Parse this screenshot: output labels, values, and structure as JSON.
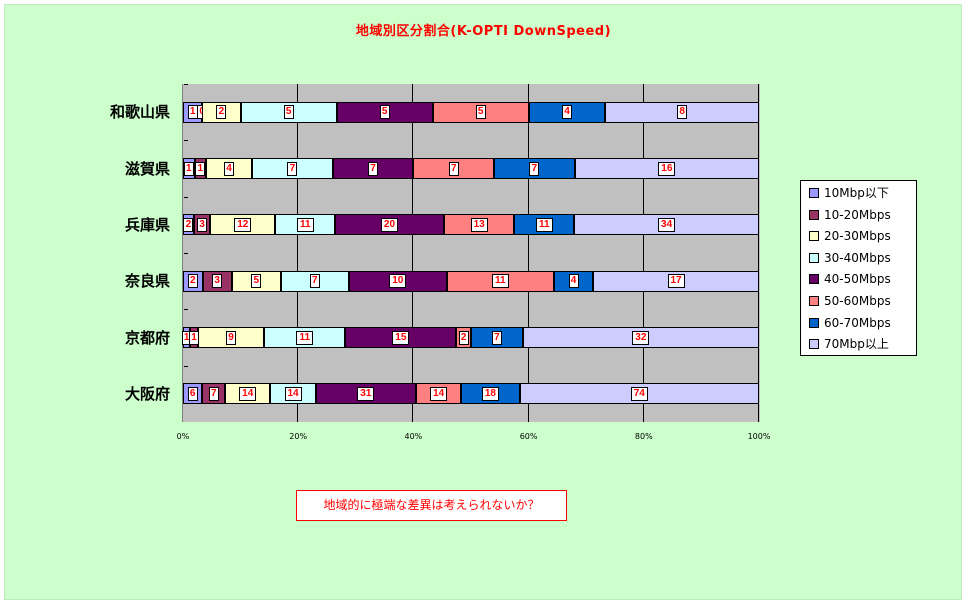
{
  "chart_data": {
    "type": "bar",
    "orientation": "horizontal",
    "stacked": "percent",
    "title": "地域別区分割合(K-OPTI DownSpeed)",
    "categories": [
      "和歌山県",
      "滋賀県",
      "兵庫県",
      "奈良県",
      "京都府",
      "大阪府"
    ],
    "series": [
      {
        "name": "10Mbp以下",
        "color": "#9999ff",
        "values": [
          1,
          1,
          2,
          2,
          1,
          6
        ]
      },
      {
        "name": "10-20Mbps",
        "color": "#993366",
        "values": [
          0,
          1,
          3,
          3,
          1,
          7
        ]
      },
      {
        "name": "20-30Mbps",
        "color": "#ffffcc",
        "values": [
          2,
          4,
          12,
          5,
          9,
          14
        ]
      },
      {
        "name": "30-40Mbps",
        "color": "#ccffff",
        "values": [
          5,
          7,
          11,
          7,
          11,
          14
        ]
      },
      {
        "name": "40-50Mbps",
        "color": "#660066",
        "values": [
          5,
          7,
          20,
          10,
          15,
          31
        ]
      },
      {
        "name": "50-60Mbps",
        "color": "#ff8080",
        "values": [
          5,
          7,
          13,
          11,
          2,
          14
        ]
      },
      {
        "name": "60-70Mbps",
        "color": "#0066cc",
        "values": [
          4,
          7,
          11,
          4,
          7,
          18
        ]
      },
      {
        "name": "70Mbp以上",
        "color": "#ccccff",
        "values": [
          8,
          16,
          34,
          17,
          32,
          74
        ]
      }
    ],
    "xticks": [
      "0%",
      "20%",
      "40%",
      "60%",
      "80%",
      "100%"
    ],
    "xlim": [
      0,
      100
    ],
    "grid": "vertical",
    "legend_position": "right"
  },
  "note": "地域的に極端な差異は考えられないか？"
}
